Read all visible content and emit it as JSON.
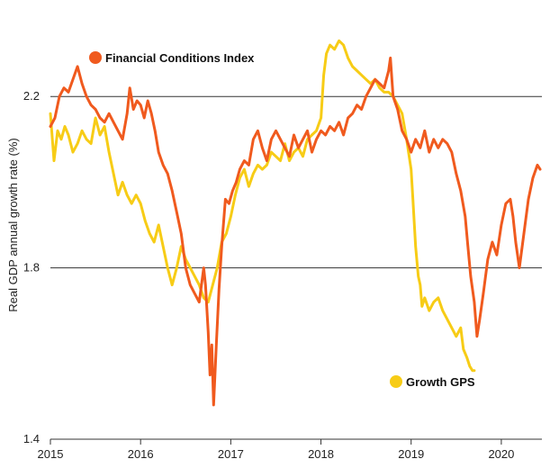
{
  "chart_data": {
    "type": "line",
    "ylabel": "Real GDP annual growth rate (%)",
    "xlabel": "",
    "ylim": [
      1.4,
      2.4
    ],
    "xlim": [
      2015.0,
      2020.45
    ],
    "yticks": [
      1.4,
      1.8,
      2.2
    ],
    "ytick_labels": [
      "1.4",
      "1.8",
      "2.2"
    ],
    "xticks": [
      2015,
      2016,
      2017,
      2018,
      2019,
      2020
    ],
    "xtick_labels": [
      "2015",
      "2016",
      "2017",
      "2018",
      "2019",
      "2020"
    ],
    "gridlines_y": [
      1.8,
      2.2
    ],
    "series": [
      {
        "name": "Financial Conditions Index",
        "color": "#F05A1E",
        "x": [
          2015.0,
          2015.05,
          2015.1,
          2015.15,
          2015.2,
          2015.25,
          2015.3,
          2015.35,
          2015.4,
          2015.45,
          2015.5,
          2015.55,
          2015.6,
          2015.65,
          2015.7,
          2015.75,
          2015.8,
          2015.85,
          2015.88,
          2015.92,
          2015.96,
          2016.0,
          2016.04,
          2016.08,
          2016.12,
          2016.16,
          2016.2,
          2016.25,
          2016.3,
          2016.35,
          2016.4,
          2016.45,
          2016.5,
          2016.55,
          2016.6,
          2016.65,
          2016.7,
          2016.72,
          2016.75,
          2016.77,
          2016.79,
          2016.81,
          2016.84,
          2016.87,
          2016.9,
          2016.94,
          2016.98,
          2017.02,
          2017.06,
          2017.1,
          2017.15,
          2017.2,
          2017.25,
          2017.3,
          2017.35,
          2017.4,
          2017.45,
          2017.5,
          2017.55,
          2017.6,
          2017.65,
          2017.7,
          2017.75,
          2017.8,
          2017.85,
          2017.9,
          2017.95,
          2018.0,
          2018.05,
          2018.1,
          2018.15,
          2018.2,
          2018.25,
          2018.3,
          2018.35,
          2018.4,
          2018.45,
          2018.5,
          2018.55,
          2018.6,
          2018.65,
          2018.7,
          2018.75,
          2018.77,
          2018.8,
          2018.85,
          2018.9,
          2018.95,
          2019.0,
          2019.05,
          2019.1,
          2019.15,
          2019.2,
          2019.25,
          2019.3,
          2019.35,
          2019.4,
          2019.45,
          2019.5,
          2019.55,
          2019.6,
          2019.63,
          2019.66,
          2019.7,
          2019.73,
          2019.76,
          2019.8,
          2019.85,
          2019.9,
          2019.95,
          2020.0,
          2020.05,
          2020.1,
          2020.13,
          2020.16,
          2020.2,
          2020.25,
          2020.3,
          2020.35,
          2020.4,
          2020.43
        ],
        "y": [
          2.13,
          2.15,
          2.2,
          2.22,
          2.21,
          2.24,
          2.27,
          2.23,
          2.2,
          2.18,
          2.17,
          2.15,
          2.14,
          2.16,
          2.14,
          2.12,
          2.1,
          2.16,
          2.22,
          2.17,
          2.19,
          2.18,
          2.15,
          2.19,
          2.16,
          2.12,
          2.07,
          2.04,
          2.02,
          1.98,
          1.93,
          1.88,
          1.8,
          1.76,
          1.74,
          1.72,
          1.8,
          1.76,
          1.65,
          1.55,
          1.62,
          1.48,
          1.62,
          1.75,
          1.85,
          1.96,
          1.95,
          1.98,
          2.0,
          2.03,
          2.05,
          2.04,
          2.1,
          2.12,
          2.08,
          2.05,
          2.1,
          2.12,
          2.1,
          2.08,
          2.06,
          2.11,
          2.08,
          2.1,
          2.12,
          2.07,
          2.1,
          2.12,
          2.11,
          2.13,
          2.12,
          2.14,
          2.11,
          2.15,
          2.16,
          2.18,
          2.17,
          2.2,
          2.22,
          2.24,
          2.23,
          2.22,
          2.26,
          2.29,
          2.2,
          2.17,
          2.12,
          2.1,
          2.07,
          2.1,
          2.08,
          2.12,
          2.07,
          2.1,
          2.08,
          2.1,
          2.09,
          2.07,
          2.02,
          1.98,
          1.92,
          1.85,
          1.78,
          1.72,
          1.64,
          1.68,
          1.74,
          1.82,
          1.86,
          1.83,
          1.9,
          1.95,
          1.96,
          1.92,
          1.86,
          1.8,
          1.88,
          1.96,
          2.01,
          2.04,
          2.03
        ]
      },
      {
        "name": "Growth GPS",
        "color": "#F7CC16",
        "x": [
          2015.0,
          2015.04,
          2015.08,
          2015.12,
          2015.16,
          2015.2,
          2015.25,
          2015.3,
          2015.35,
          2015.4,
          2015.45,
          2015.5,
          2015.55,
          2015.6,
          2015.65,
          2015.7,
          2015.75,
          2015.8,
          2015.85,
          2015.9,
          2015.95,
          2016.0,
          2016.05,
          2016.1,
          2016.15,
          2016.2,
          2016.25,
          2016.3,
          2016.35,
          2016.4,
          2016.45,
          2016.5,
          2016.55,
          2016.6,
          2016.65,
          2016.7,
          2016.75,
          2016.8,
          2016.85,
          2016.9,
          2016.95,
          2017.0,
          2017.05,
          2017.1,
          2017.15,
          2017.2,
          2017.25,
          2017.3,
          2017.35,
          2017.4,
          2017.45,
          2017.5,
          2017.55,
          2017.6,
          2017.65,
          2017.7,
          2017.75,
          2017.8,
          2017.85,
          2017.9,
          2017.95,
          2018.0,
          2018.03,
          2018.06,
          2018.1,
          2018.15,
          2018.2,
          2018.25,
          2018.3,
          2018.35,
          2018.4,
          2018.45,
          2018.5,
          2018.55,
          2018.6,
          2018.65,
          2018.7,
          2018.75,
          2018.8,
          2018.85,
          2018.9,
          2018.95,
          2019.0,
          2019.02,
          2019.05,
          2019.08,
          2019.1,
          2019.12,
          2019.15,
          2019.2,
          2019.25,
          2019.3,
          2019.35,
          2019.4,
          2019.45,
          2019.5,
          2019.55,
          2019.58,
          2019.62,
          2019.65,
          2019.68,
          2019.7
        ],
        "y": [
          2.16,
          2.05,
          2.12,
          2.1,
          2.13,
          2.11,
          2.07,
          2.09,
          2.12,
          2.1,
          2.09,
          2.15,
          2.11,
          2.13,
          2.07,
          2.02,
          1.97,
          2.0,
          1.97,
          1.95,
          1.97,
          1.95,
          1.91,
          1.88,
          1.86,
          1.9,
          1.85,
          1.8,
          1.76,
          1.8,
          1.85,
          1.82,
          1.8,
          1.78,
          1.76,
          1.73,
          1.72,
          1.76,
          1.8,
          1.86,
          1.88,
          1.92,
          1.97,
          2.01,
          2.03,
          1.99,
          2.02,
          2.04,
          2.03,
          2.04,
          2.07,
          2.06,
          2.05,
          2.09,
          2.05,
          2.07,
          2.08,
          2.06,
          2.1,
          2.11,
          2.12,
          2.15,
          2.25,
          2.3,
          2.32,
          2.31,
          2.33,
          2.32,
          2.29,
          2.27,
          2.26,
          2.25,
          2.24,
          2.23,
          2.24,
          2.22,
          2.21,
          2.21,
          2.2,
          2.18,
          2.16,
          2.1,
          2.03,
          1.96,
          1.85,
          1.78,
          1.76,
          1.71,
          1.73,
          1.7,
          1.72,
          1.73,
          1.7,
          1.68,
          1.66,
          1.64,
          1.66,
          1.61,
          1.59,
          1.57,
          1.56,
          1.56
        ]
      }
    ],
    "legend": [
      {
        "name": "Financial Conditions Index",
        "color": "#F05A1E",
        "placement": "top-left"
      },
      {
        "name": "Growth GPS",
        "color": "#F7CC16",
        "placement": "bottom-right"
      }
    ]
  }
}
